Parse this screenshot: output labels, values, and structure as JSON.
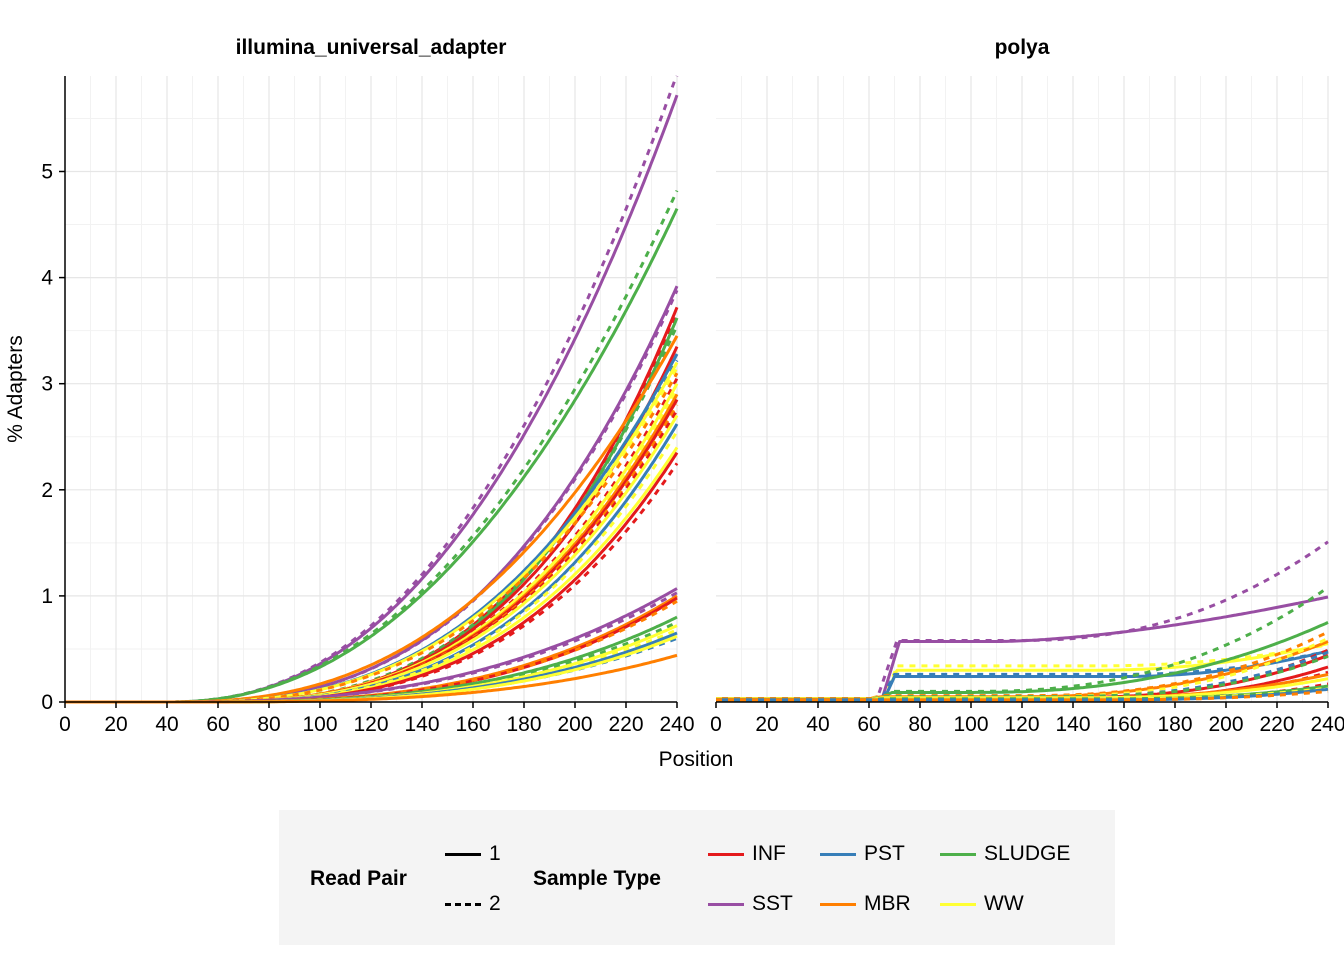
{
  "chart_data": {
    "type": "line",
    "xlabel": "Position",
    "ylabel": "% Adapters",
    "x_ticks": [
      0,
      20,
      40,
      60,
      80,
      100,
      120,
      140,
      160,
      180,
      200,
      220,
      240
    ],
    "y_ticks": [
      0,
      1,
      2,
      3,
      4,
      5
    ],
    "xlim": [
      0,
      240
    ],
    "ylim": [
      0,
      5.9
    ],
    "grid": true,
    "legend_placement": "bottom",
    "line_types": [
      {
        "label": "1",
        "dash": "solid"
      },
      {
        "label": "2",
        "dash": "dashed"
      }
    ],
    "sample_types": [
      {
        "label": "INF",
        "color": "#e41a1c"
      },
      {
        "label": "PST",
        "color": "#377eb8"
      },
      {
        "label": "SLUDGE",
        "color": "#4daf4a"
      },
      {
        "label": "SST",
        "color": "#984ea3"
      },
      {
        "label": "MBR",
        "color": "#ff7f00"
      },
      {
        "label": "WW",
        "color": "#ffff33"
      }
    ],
    "legend": {
      "read_pair_title": "Read Pair",
      "sample_type_title": "Sample Type"
    },
    "panels": [
      {
        "title": "illumina_universal_adapter",
        "series": [
          {
            "sample": "SST",
            "read": "2",
            "model": "power",
            "end": 5.92,
            "start": 40,
            "exp": 2.3
          },
          {
            "sample": "SST",
            "read": "1",
            "model": "power",
            "end": 5.72,
            "start": 40,
            "exp": 2.3
          },
          {
            "sample": "SLUDGE",
            "read": "2",
            "model": "power",
            "end": 4.82,
            "start": 40,
            "exp": 2.2
          },
          {
            "sample": "SLUDGE",
            "read": "1",
            "model": "power",
            "end": 4.65,
            "start": 40,
            "exp": 2.2
          },
          {
            "sample": "SST",
            "read": "1",
            "model": "power",
            "end": 3.92,
            "start": 40,
            "exp": 2.75
          },
          {
            "sample": "SST",
            "read": "2",
            "model": "power",
            "end": 3.88,
            "start": 40,
            "exp": 2.75
          },
          {
            "sample": "INF",
            "read": "1",
            "model": "power",
            "end": 3.72,
            "start": 45,
            "exp": 3.1
          },
          {
            "sample": "INF",
            "read": "2",
            "model": "power",
            "end": 3.65,
            "start": 45,
            "exp": 3.1
          },
          {
            "sample": "SLUDGE",
            "read": "1",
            "model": "power",
            "end": 3.62,
            "start": 45,
            "exp": 3.1
          },
          {
            "sample": "SLUDGE",
            "read": "2",
            "model": "power",
            "end": 3.55,
            "start": 45,
            "exp": 3.0
          },
          {
            "sample": "MBR",
            "read": "1",
            "model": "power",
            "end": 3.45,
            "start": 40,
            "exp": 2.5
          },
          {
            "sample": "INF",
            "read": "1",
            "model": "power",
            "end": 3.35,
            "start": 45,
            "exp": 3.0
          },
          {
            "sample": "PST",
            "read": "1",
            "model": "power",
            "end": 3.28,
            "start": 42,
            "exp": 2.7
          },
          {
            "sample": "PST",
            "read": "2",
            "model": "power",
            "end": 3.22,
            "start": 42,
            "exp": 2.7
          },
          {
            "sample": "WW",
            "read": "1",
            "model": "power",
            "end": 3.2,
            "start": 42,
            "exp": 2.7
          },
          {
            "sample": "WW",
            "read": "2",
            "model": "power",
            "end": 3.15,
            "start": 42,
            "exp": 2.7
          },
          {
            "sample": "MBR",
            "read": "2",
            "model": "power",
            "end": 3.1,
            "start": 42,
            "exp": 2.7
          },
          {
            "sample": "INF",
            "read": "2",
            "model": "power",
            "end": 3.05,
            "start": 45,
            "exp": 2.9
          },
          {
            "sample": "WW",
            "read": "1",
            "model": "power",
            "end": 3.0,
            "start": 45,
            "exp": 2.9
          },
          {
            "sample": "WW",
            "read": "2",
            "model": "power",
            "end": 2.95,
            "start": 45,
            "exp": 2.9
          },
          {
            "sample": "MBR",
            "read": "1",
            "model": "power",
            "end": 2.9,
            "start": 45,
            "exp": 2.9
          },
          {
            "sample": "INF",
            "read": "1",
            "model": "power",
            "end": 2.85,
            "start": 45,
            "exp": 2.9
          },
          {
            "sample": "MBR",
            "read": "2",
            "model": "power",
            "end": 2.8,
            "start": 45,
            "exp": 2.9
          },
          {
            "sample": "INF",
            "read": "2",
            "model": "power",
            "end": 2.75,
            "start": 45,
            "exp": 2.9
          },
          {
            "sample": "WW",
            "read": "1",
            "model": "power",
            "end": 2.7,
            "start": 45,
            "exp": 2.9
          },
          {
            "sample": "PST",
            "read": "1",
            "model": "power",
            "end": 2.62,
            "start": 45,
            "exp": 3.0
          },
          {
            "sample": "WW",
            "read": "2",
            "model": "power",
            "end": 2.55,
            "start": 45,
            "exp": 3.0
          },
          {
            "sample": "WW",
            "read": "1",
            "model": "power",
            "end": 2.4,
            "start": 45,
            "exp": 3.0
          },
          {
            "sample": "INF",
            "read": "1",
            "model": "power",
            "end": 2.35,
            "start": 45,
            "exp": 3.1
          },
          {
            "sample": "INF",
            "read": "2",
            "model": "power",
            "end": 2.25,
            "start": 45,
            "exp": 3.1
          },
          {
            "sample": "SST",
            "read": "1",
            "model": "power",
            "end": 1.07,
            "start": 40,
            "exp": 2.6
          },
          {
            "sample": "SST",
            "read": "2",
            "model": "power",
            "end": 1.03,
            "start": 40,
            "exp": 2.6
          },
          {
            "sample": "MBR",
            "read": "1",
            "model": "power",
            "end": 1.0,
            "start": 45,
            "exp": 2.9
          },
          {
            "sample": "INF",
            "read": "1",
            "model": "power",
            "end": 0.98,
            "start": 45,
            "exp": 3.0
          },
          {
            "sample": "MBR",
            "read": "2",
            "model": "power",
            "end": 0.95,
            "start": 45,
            "exp": 2.9
          },
          {
            "sample": "SLUDGE",
            "read": "1",
            "model": "power",
            "end": 0.8,
            "start": 45,
            "exp": 2.9
          },
          {
            "sample": "SLUDGE",
            "read": "2",
            "model": "power",
            "end": 0.75,
            "start": 45,
            "exp": 2.9
          },
          {
            "sample": "WW",
            "read": "1",
            "model": "power",
            "end": 0.72,
            "start": 45,
            "exp": 3.0
          },
          {
            "sample": "WW",
            "read": "2",
            "model": "power",
            "end": 0.68,
            "start": 45,
            "exp": 3.0
          },
          {
            "sample": "PST",
            "read": "1",
            "model": "power",
            "end": 0.65,
            "start": 45,
            "exp": 3.0
          },
          {
            "sample": "PST",
            "read": "2",
            "model": "power",
            "end": 0.6,
            "start": 45,
            "exp": 3.0
          },
          {
            "sample": "WW",
            "read": "1",
            "model": "power",
            "end": 0.62,
            "start": 45,
            "exp": 3.1
          },
          {
            "sample": "MBR",
            "read": "1",
            "model": "power",
            "end": 0.44,
            "start": 45,
            "exp": 3.0
          }
        ]
      },
      {
        "title": "polya",
        "series": [
          {
            "sample": "SST",
            "read": "2",
            "model": "plateau",
            "jump": 63,
            "rise": 8,
            "base": 0.02,
            "plateau": 0.58,
            "tail": 0.93,
            "tail_start": 120,
            "tail_exp": 2.2
          },
          {
            "sample": "SST",
            "read": "1",
            "model": "plateau",
            "jump": 65,
            "rise": 7,
            "base": 0.02,
            "plateau": 0.57,
            "tail": 0.42,
            "tail_start": 110,
            "tail_exp": 1.6
          },
          {
            "sample": "WW",
            "read": "2",
            "model": "plateau",
            "jump": 66,
            "rise": 5,
            "base": 0.03,
            "plateau": 0.34,
            "tail": 0.2,
            "tail_start": 150,
            "tail_exp": 2.0
          },
          {
            "sample": "WW",
            "read": "1",
            "model": "plateau",
            "jump": 66,
            "rise": 5,
            "base": 0.03,
            "plateau": 0.3,
            "tail": 0.25,
            "tail_start": 150,
            "tail_exp": 2.0
          },
          {
            "sample": "PST",
            "read": "2",
            "model": "plateau",
            "jump": 65,
            "rise": 5,
            "base": 0.03,
            "plateau": 0.26,
            "tail": 0.22,
            "tail_start": 160,
            "tail_exp": 2.0
          },
          {
            "sample": "PST",
            "read": "1",
            "model": "plateau",
            "jump": 66,
            "rise": 4,
            "base": 0.03,
            "plateau": 0.24,
            "tail": 0.24,
            "tail_start": 160,
            "tail_exp": 2.0
          },
          {
            "sample": "SLUDGE",
            "read": "2",
            "model": "plateau",
            "jump": 64,
            "rise": 5,
            "base": 0.03,
            "plateau": 0.1,
            "tail": 0.98,
            "tail_start": 100,
            "tail_exp": 2.4
          },
          {
            "sample": "SLUDGE",
            "read": "1",
            "model": "plateau",
            "jump": 64,
            "rise": 5,
            "base": 0.03,
            "plateau": 0.09,
            "tail": 0.66,
            "tail_start": 100,
            "tail_exp": 2.3
          },
          {
            "sample": "MBR",
            "read": "2",
            "model": "plateau",
            "jump": 60,
            "rise": 5,
            "base": 0.03,
            "plateau": 0.06,
            "tail": 0.6,
            "tail_start": 120,
            "tail_exp": 2.4
          },
          {
            "sample": "MBR",
            "read": "1",
            "model": "plateau",
            "jump": 60,
            "rise": 5,
            "base": 0.03,
            "plateau": 0.05,
            "tail": 0.52,
            "tail_start": 120,
            "tail_exp": 2.2
          },
          {
            "sample": "WW",
            "read": "2",
            "model": "plateau",
            "jump": 60,
            "rise": 5,
            "base": 0.03,
            "plateau": 0.05,
            "tail": 0.55,
            "tail_start": 120,
            "tail_exp": 2.6
          },
          {
            "sample": "INF",
            "read": "1",
            "model": "plateau",
            "jump": 60,
            "rise": 5,
            "base": 0.02,
            "plateau": 0.04,
            "tail": 0.4,
            "tail_start": 130,
            "tail_exp": 2.6
          },
          {
            "sample": "INF",
            "read": "2",
            "model": "plateau",
            "jump": 60,
            "rise": 5,
            "base": 0.02,
            "plateau": 0.04,
            "tail": 0.45,
            "tail_start": 130,
            "tail_exp": 2.7
          },
          {
            "sample": "PST",
            "read": "2",
            "model": "plateau",
            "jump": 60,
            "rise": 5,
            "base": 0.02,
            "plateau": 0.05,
            "tail": 0.42,
            "tail_start": 130,
            "tail_exp": 2.5
          },
          {
            "sample": "SLUDGE",
            "read": "2",
            "model": "plateau",
            "jump": 60,
            "rise": 5,
            "base": 0.02,
            "plateau": 0.05,
            "tail": 0.38,
            "tail_start": 130,
            "tail_exp": 2.6
          },
          {
            "sample": "INF",
            "read": "1",
            "model": "plateau",
            "jump": 60,
            "rise": 5,
            "base": 0.02,
            "plateau": 0.03,
            "tail": 0.3,
            "tail_start": 140,
            "tail_exp": 2.6
          },
          {
            "sample": "INF",
            "read": "2",
            "model": "plateau",
            "jump": 60,
            "rise": 5,
            "base": 0.02,
            "plateau": 0.03,
            "tail": 0.25,
            "tail_start": 140,
            "tail_exp": 2.8
          },
          {
            "sample": "MBR",
            "read": "1",
            "model": "plateau",
            "jump": 60,
            "rise": 5,
            "base": 0.02,
            "plateau": 0.04,
            "tail": 0.22,
            "tail_start": 140,
            "tail_exp": 2.4
          },
          {
            "sample": "WW",
            "read": "1",
            "model": "plateau",
            "jump": 60,
            "rise": 5,
            "base": 0.02,
            "plateau": 0.04,
            "tail": 0.18,
            "tail_start": 140,
            "tail_exp": 2.5
          },
          {
            "sample": "INF",
            "read": "2",
            "model": "plateau",
            "jump": 60,
            "rise": 5,
            "base": 0.02,
            "plateau": 0.02,
            "tail": 0.15,
            "tail_start": 150,
            "tail_exp": 2.6
          },
          {
            "sample": "SLUDGE",
            "read": "1",
            "model": "plateau",
            "jump": 60,
            "rise": 5,
            "base": 0.02,
            "plateau": 0.03,
            "tail": 0.12,
            "tail_start": 150,
            "tail_exp": 2.4
          },
          {
            "sample": "WW",
            "read": "2",
            "model": "plateau",
            "jump": 60,
            "rise": 5,
            "base": 0.02,
            "plateau": 0.03,
            "tail": 0.1,
            "tail_start": 150,
            "tail_exp": 2.4
          },
          {
            "sample": "PST",
            "read": "1",
            "model": "plateau",
            "jump": 60,
            "rise": 5,
            "base": 0.02,
            "plateau": 0.02,
            "tail": 0.1,
            "tail_start": 150,
            "tail_exp": 2.5
          },
          {
            "sample": "MBR",
            "read": "2",
            "model": "plateau",
            "jump": 60,
            "rise": 5,
            "base": 0.02,
            "plateau": 0.02,
            "tail": 0.08,
            "tail_start": 150,
            "tail_exp": 2.4
          }
        ]
      }
    ]
  }
}
